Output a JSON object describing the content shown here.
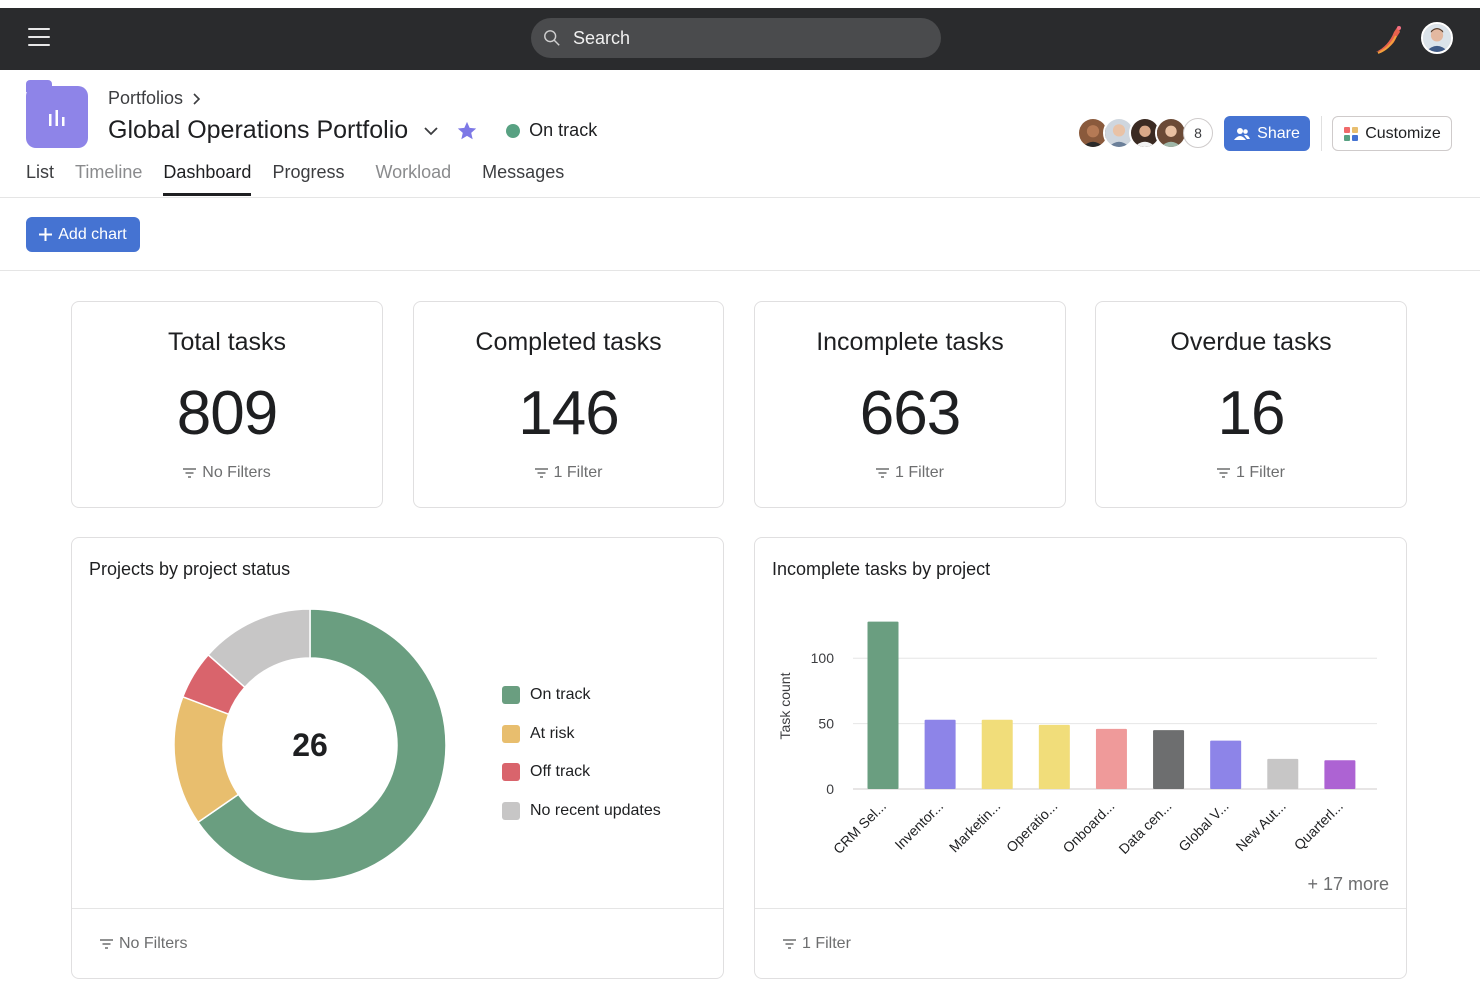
{
  "topbar": {
    "search_placeholder": "Search",
    "icons": [
      "hamburger-icon",
      "search-icon",
      "app-logo",
      "user-avatar"
    ]
  },
  "header": {
    "breadcrumb": "Portfolios",
    "title": "Global Operations Portfolio",
    "status": "On track",
    "status_color": "#58a182",
    "member_count": "8",
    "share_label": "Share",
    "customize_label": "Customize"
  },
  "tabs": [
    {
      "label": "List"
    },
    {
      "label": "Timeline"
    },
    {
      "label": "Dashboard"
    },
    {
      "label": "Progress"
    },
    {
      "label": "Workload"
    },
    {
      "label": "Messages"
    }
  ],
  "toolbar": {
    "add_chart_label": "Add chart"
  },
  "stats": [
    {
      "title": "Total tasks",
      "value": "809",
      "filter": "No Filters"
    },
    {
      "title": "Completed tasks",
      "value": "146",
      "filter": "1 Filter"
    },
    {
      "title": "Incomplete tasks",
      "value": "663",
      "filter": "1 Filter"
    },
    {
      "title": "Overdue tasks",
      "value": "16",
      "filter": "1 Filter"
    }
  ],
  "donut_card": {
    "title": "Projects by project status",
    "center": "26",
    "filter": "No Filters"
  },
  "bar_card": {
    "title": "Incomplete tasks by project",
    "filter": "1 Filter",
    "more": "+ 17 more"
  },
  "colors": {
    "accent": "#4573d2",
    "on_track": "#6a9e80",
    "at_risk": "#e8be6e",
    "off_track": "#d9646c",
    "no_updates": "#c7c6c6"
  },
  "chart_data": [
    {
      "type": "pie",
      "title": "Projects by project status",
      "total": 26,
      "categories": [
        "On track",
        "At risk",
        "Off track",
        "No recent updates"
      ],
      "values": [
        17,
        4,
        1.5,
        3.5
      ],
      "colors": [
        "#6a9e80",
        "#e8be6e",
        "#d9646c",
        "#c7c6c6"
      ]
    },
    {
      "type": "bar",
      "title": "Incomplete tasks by project",
      "ylabel": "Task count",
      "yticks": [
        0,
        50,
        100
      ],
      "ylim": [
        0,
        130
      ],
      "categories": [
        "CRM Sel...",
        "Inventor...",
        "Marketin...",
        "Operatio...",
        "Onboard...",
        "Data cen...",
        "Global V...",
        "New Aut...",
        "Quarterl..."
      ],
      "values": [
        128,
        53,
        53,
        49,
        46,
        45,
        37,
        23,
        22
      ],
      "colors": [
        "#6a9e80",
        "#8d84e8",
        "#f1dd7a",
        "#f1dd7a",
        "#ef9a9a",
        "#6d6e6f",
        "#8d84e8",
        "#c7c6c6",
        "#ad63d3"
      ]
    }
  ]
}
